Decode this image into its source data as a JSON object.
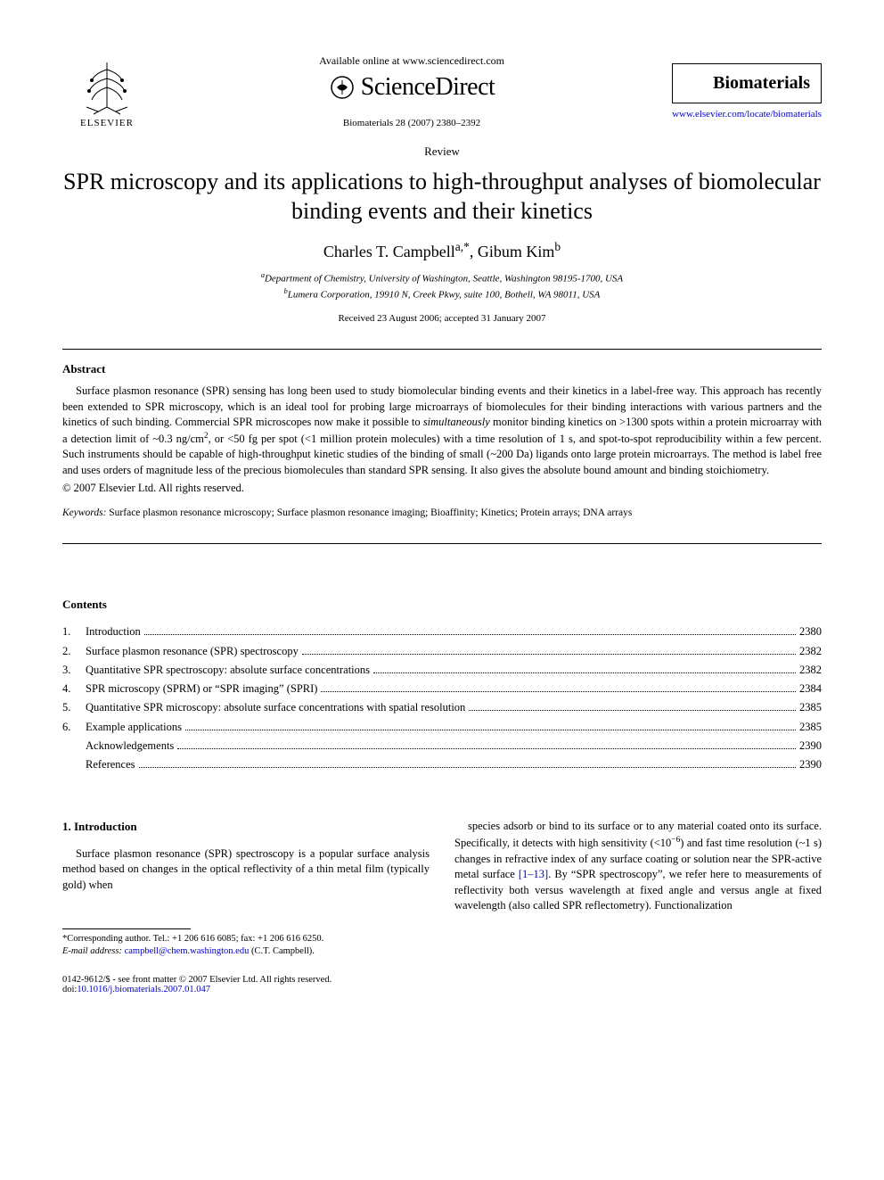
{
  "header": {
    "available_text": "Available online at www.sciencedirect.com",
    "sd_brand": "ScienceDirect",
    "elsevier_label": "ELSEVIER",
    "citation": "Biomaterials 28 (2007) 2380–2392",
    "journal_name": "Biomaterials",
    "journal_url": "www.elsevier.com/locate/biomaterials"
  },
  "article": {
    "type_label": "Review",
    "title": "SPR microscopy and its applications to high-throughput analyses of biomolecular binding events and their kinetics",
    "authors_html": "Charles T. Campbell<sup>a,*</sup>, Gibum Kim<sup>b</sup>",
    "affiliations": [
      "<sup>a</sup>Department of Chemistry, University of Washington, Seattle, Washington 98195-1700, USA",
      "<sup>b</sup>Lumera Corporation, 19910 N, Creek Pkwy, suite 100, Bothell, WA 98011, USA"
    ],
    "dates": "Received 23 August 2006; accepted 31 January 2007"
  },
  "abstract": {
    "heading": "Abstract",
    "body": "Surface plasmon resonance (SPR) sensing has long been used to study biomolecular binding events and their kinetics in a label-free way. This approach has recently been extended to SPR microscopy, which is an ideal tool for probing large microarrays of biomolecules for their binding interactions with various partners and the kinetics of such binding. Commercial SPR microscopes now make it possible to <em class='it'>simultaneously</em> monitor binding kinetics on >1300 spots within a protein microarray with a detection limit of ~0.3 ng/cm<sup>2</sup>, or <50 fg per spot (<1 million protein molecules) with a time resolution of 1 s, and spot-to-spot reproducibility within a few percent. Such instruments should be capable of high-throughput kinetic studies of the binding of small (~200 Da) ligands onto large protein microarrays. The method is label free and uses orders of magnitude less of the precious biomolecules than standard SPR sensing. It also gives the absolute bound amount and binding stoichiometry.",
    "copyright": "© 2007 Elsevier Ltd. All rights reserved.",
    "keywords_label": "Keywords:",
    "keywords": "Surface plasmon resonance microscopy; Surface plasmon resonance imaging; Bioaffinity; Kinetics; Protein arrays; DNA arrays"
  },
  "contents": {
    "heading": "Contents",
    "items": [
      {
        "num": "1.",
        "title": "Introduction",
        "page": "2380"
      },
      {
        "num": "2.",
        "title": "Surface plasmon resonance (SPR) spectroscopy",
        "page": "2382"
      },
      {
        "num": "3.",
        "title": "Quantitative SPR spectroscopy: absolute surface concentrations",
        "page": "2382"
      },
      {
        "num": "4.",
        "title": "SPR microscopy (SPRM) or “SPR imaging” (SPRI)",
        "page": "2384"
      },
      {
        "num": "5.",
        "title": "Quantitative SPR microscopy: absolute surface concentrations with spatial resolution",
        "page": "2385"
      },
      {
        "num": "6.",
        "title": "Example applications",
        "page": "2385"
      },
      {
        "num": "",
        "title": "Acknowledgements",
        "page": "2390"
      },
      {
        "num": "",
        "title": "References",
        "page": "2390"
      }
    ]
  },
  "body": {
    "section1_head": "1. Introduction",
    "col1_p1": "Surface plasmon resonance (SPR) spectroscopy is a popular surface analysis method based on changes in the optical reflectivity of a thin metal film (typically gold) when",
    "col2_p1": "species adsorb or bind to its surface or to any material coated onto its surface. Specifically, it detects with high sensitivity (<10<sup>−6</sup>) and fast time resolution (~1 s) changes in refractive index of any surface coating or solution near the SPR-active metal surface <span class='link'>[1–13]</span>. By “SPR spectroscopy”, we refer here to measurements of reflectivity both versus wavelength at fixed angle and versus angle at fixed wavelength (also called SPR reflectometry). Functionalization"
  },
  "footnote": {
    "corr": "*Corresponding author. Tel.: +1 206 616 6085; fax: +1 206 616 6250.",
    "email_label": "E-mail address:",
    "email": "campbell@chem.washington.edu",
    "email_who": "(C.T. Campbell)."
  },
  "footer": {
    "left1": "0142-9612/$ - see front matter © 2007 Elsevier Ltd. All rights reserved.",
    "left2_label": "doi:",
    "left2_link": "10.1016/j.biomaterials.2007.01.047"
  },
  "colors": {
    "text": "#000000",
    "link": "#0000cc",
    "background": "#ffffff"
  },
  "typography": {
    "body_pt": 12.5,
    "title_pt": 26,
    "authors_pt": 18,
    "footnote_pt": 10.5,
    "font_family": "Times New Roman"
  }
}
